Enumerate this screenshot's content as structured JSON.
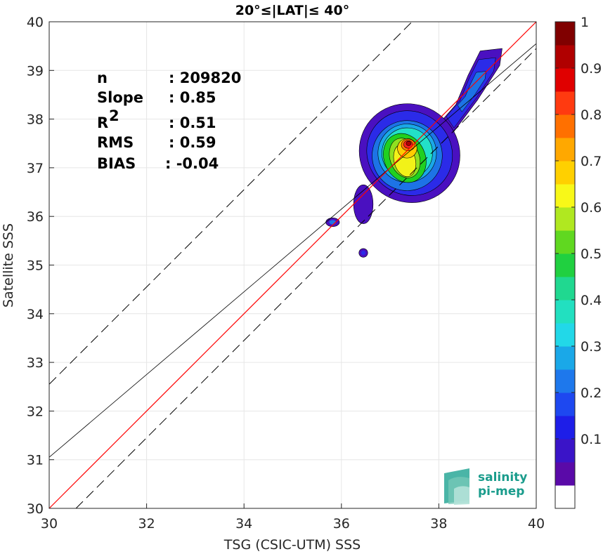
{
  "chart_data": {
    "type": "contour-density-scatter",
    "title": "20°≤|LAT|≤ 40°",
    "xlabel": "TSG (CSIC-UTM) SSS",
    "ylabel": "Satellite SSS",
    "xlim": [
      30,
      40
    ],
    "ylim": [
      30,
      40
    ],
    "x_ticks": [
      "30",
      "32",
      "34",
      "36",
      "38",
      "40"
    ],
    "y_ticks": [
      "30",
      "31",
      "32",
      "33",
      "34",
      "35",
      "36",
      "37",
      "38",
      "39",
      "40"
    ],
    "grid": true,
    "reference_lines": {
      "one_to_one": {
        "color": "#ff0000",
        "slope": 1,
        "intercept": 0
      },
      "regression": {
        "color": "#000000",
        "slope": 0.85,
        "intercept_at_x30": 31.05
      },
      "upper_dashed": {
        "x30_y": 32.55,
        "slope": 1
      },
      "lower_dashed": {
        "x30_y": 29.45,
        "slope": 1
      }
    },
    "stats": [
      {
        "label": "n",
        "sup": "",
        "sep": ":",
        "value": "209820"
      },
      {
        "label": "Slope",
        "sup": "",
        "sep": ":",
        "value": "0.85"
      },
      {
        "label": "R",
        "sup": "2",
        "sep": ":",
        "value": "0.51"
      },
      {
        "label": "RMS",
        "sup": "",
        "sep": ":",
        "value": "0.59"
      },
      {
        "label": "BIAS",
        "sup": "",
        "sep": ":",
        "value": "-0.04"
      }
    ],
    "density_levels": [
      {
        "level": 0.05,
        "color": "#4a10c0",
        "center": [
          37.4,
          37.3
        ],
        "rx": 1.0,
        "ry": 1.05,
        "rot": 55
      },
      {
        "level": 0.15,
        "color": "#2b2be8",
        "center": [
          37.4,
          37.3
        ],
        "rx": 0.85,
        "ry": 0.9,
        "rot": 50
      },
      {
        "level": 0.25,
        "color": "#1d73e6",
        "center": [
          37.35,
          37.25
        ],
        "rx": 0.72,
        "ry": 0.72,
        "rot": 40
      },
      {
        "level": 0.3,
        "color": "#1aa8e8",
        "center": [
          37.35,
          37.3
        ],
        "rx": 0.6,
        "ry": 0.6,
        "rot": 40
      },
      {
        "level": 0.4,
        "color": "#22e0c8",
        "center": [
          37.35,
          37.3
        ],
        "rx": 0.52,
        "ry": 0.52,
        "rot": 40
      },
      {
        "level": 0.5,
        "color": "#20d020",
        "center": [
          37.3,
          37.2
        ],
        "rx": 0.42,
        "ry": 0.52,
        "rot": 25
      },
      {
        "level": 0.55,
        "color": "#90e020",
        "center": [
          37.3,
          37.2
        ],
        "rx": 0.3,
        "ry": 0.42,
        "rot": 20
      },
      {
        "level": 0.65,
        "color": "#f2f218",
        "center": [
          37.3,
          37.15
        ],
        "rx": 0.22,
        "ry": 0.34,
        "rot": 15
      },
      {
        "level": 0.7,
        "color": "#ffcc00",
        "center": [
          37.35,
          37.4
        ],
        "rx": 0.2,
        "ry": 0.2,
        "rot": 10
      },
      {
        "level": 0.8,
        "color": "#ff7a00",
        "center": [
          37.37,
          37.47
        ],
        "rx": 0.14,
        "ry": 0.12,
        "rot": 0
      },
      {
        "level": 0.9,
        "color": "#ff2020",
        "center": [
          37.37,
          37.48
        ],
        "rx": 0.09,
        "ry": 0.08,
        "rot": 0
      },
      {
        "level": 0.95,
        "color": "#b00000",
        "center": [
          37.38,
          37.5
        ],
        "rx": 0.05,
        "ry": 0.045,
        "rot": 0
      }
    ],
    "ne_tail": {
      "color": "#4a10c0",
      "inner_color": "#2b2be8",
      "inner2_color": "#1d73e6"
    },
    "islands": [
      {
        "x": 35.82,
        "y": 35.88,
        "rx": 0.14,
        "ry": 0.09,
        "color": "#4a10c0",
        "inner": "#1d73e6"
      },
      {
        "x": 36.45,
        "y": 35.25,
        "rx": 0.09,
        "ry": 0.09,
        "color": "#4a10c0",
        "inner": "#2b2be8"
      }
    ],
    "colorbar": {
      "ticks": [
        "0.1",
        "0.2",
        "0.3",
        "0.4",
        "0.5",
        "0.6",
        "0.7",
        "0.8",
        "0.9",
        "1"
      ],
      "colors": [
        "#ffffff",
        "#5a0aa8",
        "#3a14c8",
        "#1e1ee8",
        "#1e48f0",
        "#1e78ec",
        "#1aa8e8",
        "#22d8e8",
        "#22e0c0",
        "#20d890",
        "#20d040",
        "#60d820",
        "#b0e820",
        "#f8f818",
        "#ffd000",
        "#ffa800",
        "#ff7000",
        "#ff3a10",
        "#e00000",
        "#b00000",
        "#800000"
      ]
    }
  },
  "logo": {
    "line1": "salinity",
    "line2": "pi-mep"
  }
}
